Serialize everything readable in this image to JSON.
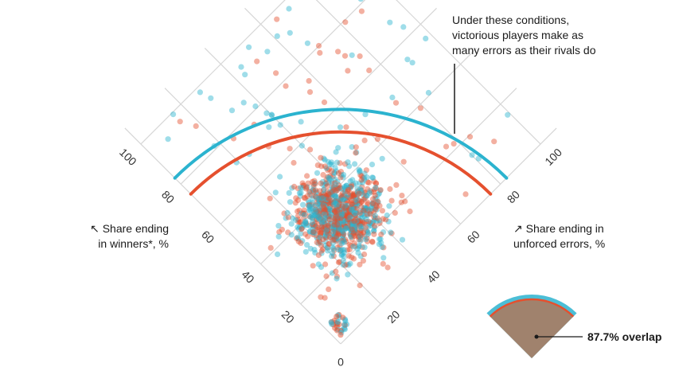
{
  "chart_data": {
    "type": "scatter",
    "axes": {
      "left": {
        "label_arrow": "↖",
        "label_lines": [
          "Share ending",
          "in winners*, %"
        ],
        "ticks": [
          0,
          20,
          40,
          60,
          80,
          100
        ]
      },
      "right": {
        "label_arrow": "↗",
        "label_lines": [
          "Share ending in",
          "unforced errors, %"
        ],
        "ticks": [
          20,
          40,
          60,
          80,
          100
        ]
      },
      "range": [
        0,
        108
      ],
      "grid": true
    },
    "series": [
      {
        "color": "#2bb3cf",
        "arc_radius": 83
      },
      {
        "color": "#e5502e",
        "arc_radius": 75
      }
    ],
    "annotation": {
      "lines": [
        "Under these conditions,",
        "victorious players make as",
        "many errors as their rivals do"
      ]
    },
    "inset": {
      "label": "87.7% overlap",
      "fill_color": "#a0826d",
      "value": 87.7
    }
  }
}
